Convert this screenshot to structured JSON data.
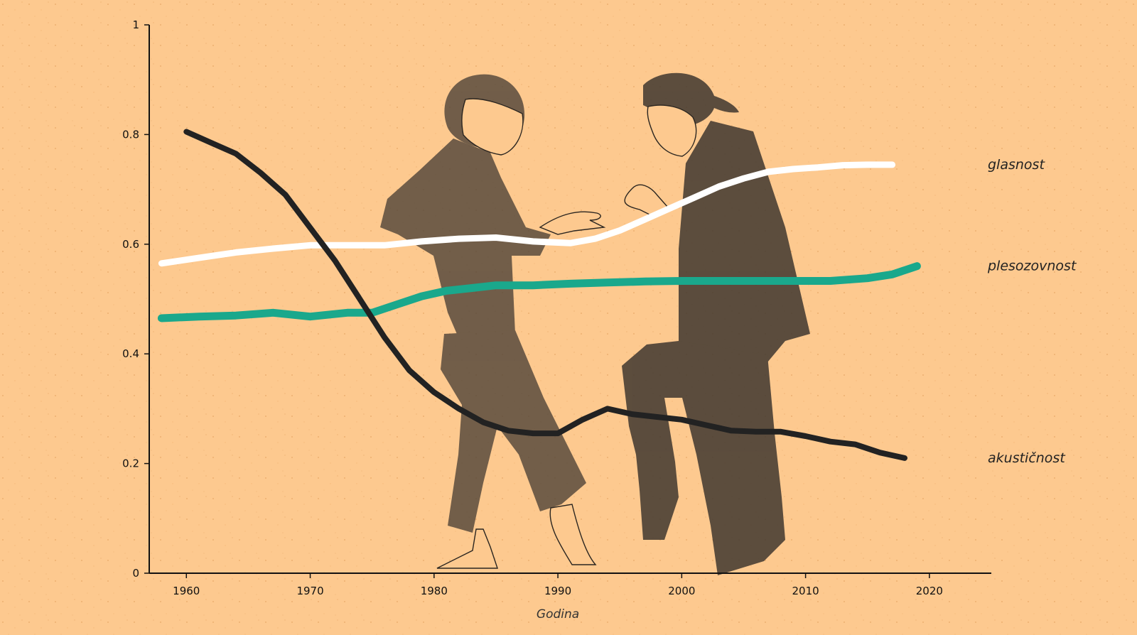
{
  "chart_data": {
    "type": "line",
    "xlabel": "Godina",
    "ylabel": "",
    "xlim": [
      1957,
      2025
    ],
    "ylim": [
      0,
      1
    ],
    "xticks": [
      "1960",
      "1970",
      "1980",
      "1990",
      "2000",
      "2010",
      "2020"
    ],
    "yticks": [
      "0",
      "0.2",
      "0.4",
      "0.6",
      "0.8",
      "1"
    ],
    "series": [
      {
        "name": "glasnost",
        "color": "#ffffff",
        "x": [
          1958,
          1961,
          1964,
          1967,
          1970,
          1973,
          1976,
          1979,
          1982,
          1985,
          1988,
          1991,
          1993,
          1995,
          1997,
          1999,
          2001,
          2003,
          2005,
          2007,
          2009,
          2011,
          2013,
          2015,
          2017
        ],
        "y": [
          0.565,
          0.575,
          0.585,
          0.592,
          0.598,
          0.598,
          0.598,
          0.605,
          0.61,
          0.612,
          0.605,
          0.602,
          0.61,
          0.625,
          0.645,
          0.665,
          0.685,
          0.705,
          0.72,
          0.732,
          0.737,
          0.74,
          0.744,
          0.745,
          0.745
        ]
      },
      {
        "name": "plesozovnost",
        "color": "#1aa88c",
        "x": [
          1958,
          1961,
          1964,
          1967,
          1970,
          1973,
          1975,
          1977,
          1979,
          1981,
          1983,
          1985,
          1988,
          1991,
          1994,
          1997,
          2000,
          2003,
          2006,
          2009,
          2012,
          2015,
          2017,
          2019
        ],
        "y": [
          0.465,
          0.468,
          0.47,
          0.475,
          0.468,
          0.475,
          0.475,
          0.49,
          0.505,
          0.515,
          0.52,
          0.525,
          0.525,
          0.528,
          0.53,
          0.532,
          0.533,
          0.533,
          0.533,
          0.533,
          0.533,
          0.538,
          0.545,
          0.56
        ]
      },
      {
        "name": "akustičnost",
        "color": "#222222",
        "x": [
          1960,
          1962,
          1964,
          1966,
          1968,
          1970,
          1972,
          1974,
          1976,
          1978,
          1980,
          1982,
          1984,
          1986,
          1988,
          1990,
          1992,
          1994,
          1996,
          1998,
          2000,
          2002,
          2004,
          2006,
          2008,
          2010,
          2012,
          2014,
          2016,
          2018
        ],
        "y": [
          0.805,
          0.785,
          0.765,
          0.73,
          0.69,
          0.63,
          0.57,
          0.5,
          0.43,
          0.37,
          0.33,
          0.3,
          0.275,
          0.26,
          0.255,
          0.255,
          0.28,
          0.3,
          0.29,
          0.285,
          0.28,
          0.27,
          0.26,
          0.258,
          0.258,
          0.25,
          0.24,
          0.235,
          0.22,
          0.21
        ]
      }
    ]
  }
}
